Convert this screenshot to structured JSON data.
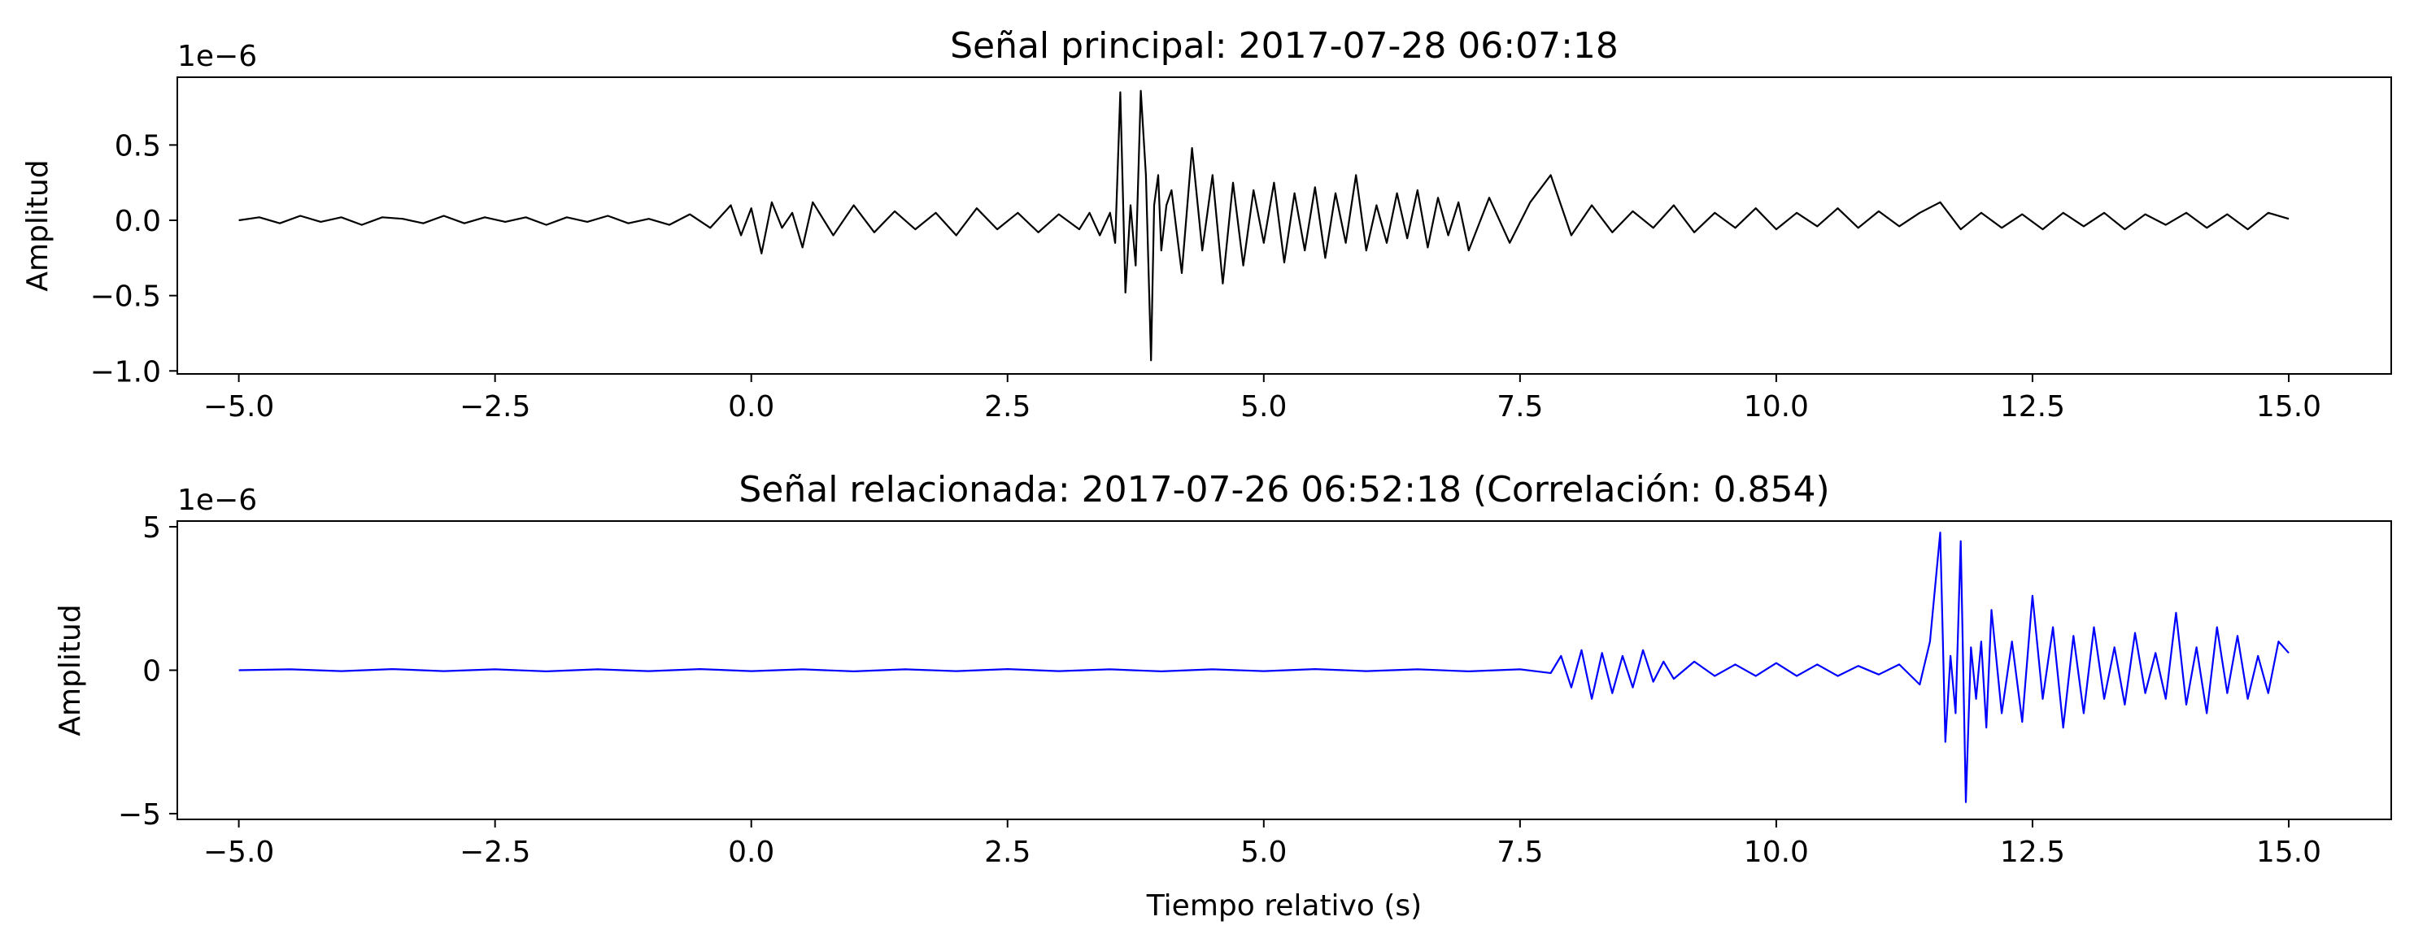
{
  "chart_data": [
    {
      "type": "line",
      "title": "Señal principal: 2017-07-28 06:07:18",
      "xlabel": "",
      "ylabel": "Amplitud",
      "offset_label": "1e−6",
      "xlim": [
        -5.6,
        16.0
      ],
      "ylim": [
        -1.02,
        0.95
      ],
      "grid": false,
      "xticks": [
        -5.0,
        -2.5,
        0.0,
        2.5,
        5.0,
        7.5,
        10.0,
        12.5,
        15.0
      ],
      "xtick_labels": [
        "−5.0",
        "−2.5",
        "0.0",
        "2.5",
        "5.0",
        "7.5",
        "10.0",
        "12.5",
        "15.0"
      ],
      "yticks": [
        0.5,
        0.0,
        -0.5,
        -1.0
      ],
      "ytick_labels": [
        "0.5",
        "0.0",
        "−0.5",
        "−1.0"
      ],
      "series": [
        {
          "color": "#000000",
          "x": [
            -5.0,
            -4.8,
            -4.6,
            -4.4,
            -4.2,
            -4.0,
            -3.8,
            -3.6,
            -3.4,
            -3.2,
            -3.0,
            -2.8,
            -2.6,
            -2.4,
            -2.2,
            -2.0,
            -1.8,
            -1.6,
            -1.4,
            -1.2,
            -1.0,
            -0.8,
            -0.6,
            -0.4,
            -0.2,
            -0.1,
            0.0,
            0.1,
            0.2,
            0.3,
            0.4,
            0.5,
            0.6,
            0.8,
            1.0,
            1.2,
            1.4,
            1.6,
            1.8,
            2.0,
            2.2,
            2.4,
            2.6,
            2.8,
            3.0,
            3.2,
            3.3,
            3.4,
            3.5,
            3.55,
            3.6,
            3.65,
            3.7,
            3.75,
            3.8,
            3.85,
            3.9,
            3.93,
            3.97,
            4.0,
            4.05,
            4.1,
            4.2,
            4.3,
            4.4,
            4.5,
            4.6,
            4.7,
            4.8,
            4.9,
            5.0,
            5.1,
            5.2,
            5.3,
            5.4,
            5.5,
            5.6,
            5.7,
            5.8,
            5.9,
            6.0,
            6.1,
            6.2,
            6.3,
            6.4,
            6.5,
            6.6,
            6.7,
            6.8,
            6.9,
            7.0,
            7.2,
            7.4,
            7.6,
            7.8,
            8.0,
            8.2,
            8.4,
            8.6,
            8.8,
            9.0,
            9.2,
            9.4,
            9.6,
            9.8,
            10.0,
            10.2,
            10.4,
            10.6,
            10.8,
            11.0,
            11.2,
            11.4,
            11.6,
            11.8,
            12.0,
            12.2,
            12.4,
            12.6,
            12.8,
            13.0,
            13.2,
            13.4,
            13.6,
            13.8,
            14.0,
            14.2,
            14.4,
            14.6,
            14.8,
            15.0
          ],
          "values": [
            0.0,
            0.02,
            -0.02,
            0.03,
            -0.01,
            0.02,
            -0.03,
            0.02,
            0.01,
            -0.02,
            0.03,
            -0.02,
            0.02,
            -0.01,
            0.02,
            -0.03,
            0.02,
            -0.01,
            0.03,
            -0.02,
            0.01,
            -0.03,
            0.04,
            -0.05,
            0.1,
            -0.1,
            0.08,
            -0.22,
            0.12,
            -0.05,
            0.05,
            -0.18,
            0.12,
            -0.1,
            0.1,
            -0.08,
            0.06,
            -0.06,
            0.05,
            -0.1,
            0.08,
            -0.06,
            0.05,
            -0.08,
            0.04,
            -0.06,
            0.05,
            -0.1,
            0.05,
            -0.15,
            0.85,
            -0.48,
            0.1,
            -0.3,
            0.86,
            0.3,
            -0.93,
            0.1,
            0.3,
            -0.2,
            0.1,
            0.2,
            -0.35,
            0.48,
            -0.2,
            0.3,
            -0.42,
            0.25,
            -0.3,
            0.2,
            -0.15,
            0.25,
            -0.28,
            0.18,
            -0.2,
            0.22,
            -0.25,
            0.18,
            -0.15,
            0.3,
            -0.2,
            0.1,
            -0.15,
            0.18,
            -0.12,
            0.2,
            -0.18,
            0.15,
            -0.1,
            0.12,
            -0.2,
            0.15,
            -0.15,
            0.12,
            0.3,
            -0.1,
            0.1,
            -0.08,
            0.06,
            -0.05,
            0.1,
            -0.08,
            0.05,
            -0.05,
            0.08,
            -0.06,
            0.05,
            -0.04,
            0.08,
            -0.05,
            0.06,
            -0.04,
            0.05,
            0.12,
            -0.06,
            0.05,
            -0.05,
            0.04,
            -0.06,
            0.05,
            -0.04,
            0.05,
            -0.06,
            0.04,
            -0.03,
            0.05,
            -0.05,
            0.04,
            -0.06,
            0.05,
            0.01
          ]
        }
      ]
    },
    {
      "type": "line",
      "title": "Señal relacionada: 2017-07-26 06:52:18 (Correlación: 0.854)",
      "xlabel": "Tiempo relativo (s)",
      "ylabel": "Amplitud",
      "offset_label": "1e−6",
      "xlim": [
        -5.6,
        16.0
      ],
      "ylim": [
        -5.2,
        5.2
      ],
      "grid": false,
      "xticks": [
        -5.0,
        -2.5,
        0.0,
        2.5,
        5.0,
        7.5,
        10.0,
        12.5,
        15.0
      ],
      "xtick_labels": [
        "−5.0",
        "−2.5",
        "0.0",
        "2.5",
        "5.0",
        "7.5",
        "10.0",
        "12.5",
        "15.0"
      ],
      "yticks": [
        5,
        0,
        -5
      ],
      "ytick_labels": [
        "5",
        "0",
        "−5"
      ],
      "series": [
        {
          "color": "#0000ff",
          "x": [
            -5.0,
            -4.5,
            -4.0,
            -3.5,
            -3.0,
            -2.5,
            -2.0,
            -1.5,
            -1.0,
            -0.5,
            0.0,
            0.5,
            1.0,
            1.5,
            2.0,
            2.5,
            3.0,
            3.5,
            4.0,
            4.5,
            5.0,
            5.5,
            6.0,
            6.5,
            7.0,
            7.5,
            7.8,
            7.9,
            8.0,
            8.1,
            8.2,
            8.3,
            8.4,
            8.5,
            8.6,
            8.7,
            8.8,
            8.9,
            9.0,
            9.2,
            9.4,
            9.6,
            9.8,
            10.0,
            10.2,
            10.4,
            10.6,
            10.8,
            11.0,
            11.2,
            11.4,
            11.5,
            11.6,
            11.65,
            11.7,
            11.75,
            11.8,
            11.85,
            11.9,
            11.95,
            12.0,
            12.05,
            12.1,
            12.2,
            12.3,
            12.4,
            12.5,
            12.6,
            12.7,
            12.8,
            12.9,
            13.0,
            13.1,
            13.2,
            13.3,
            13.4,
            13.5,
            13.6,
            13.7,
            13.8,
            13.9,
            14.0,
            14.1,
            14.2,
            14.3,
            14.4,
            14.5,
            14.6,
            14.7,
            14.8,
            14.9,
            15.0
          ],
          "values": [
            0.0,
            0.03,
            -0.03,
            0.04,
            -0.03,
            0.03,
            -0.04,
            0.03,
            -0.03,
            0.04,
            -0.03,
            0.03,
            -0.04,
            0.03,
            -0.03,
            0.04,
            -0.03,
            0.03,
            -0.04,
            0.03,
            -0.03,
            0.04,
            -0.03,
            0.03,
            -0.04,
            0.03,
            -0.1,
            0.5,
            -0.6,
            0.7,
            -1.0,
            0.6,
            -0.8,
            0.5,
            -0.6,
            0.7,
            -0.4,
            0.3,
            -0.3,
            0.3,
            -0.2,
            0.2,
            -0.2,
            0.25,
            -0.2,
            0.2,
            -0.2,
            0.15,
            -0.15,
            0.2,
            -0.5,
            1.0,
            4.8,
            -2.5,
            0.5,
            -1.5,
            4.5,
            -4.6,
            0.8,
            -1.0,
            1.0,
            -2.0,
            2.1,
            -1.5,
            1.0,
            -1.8,
            2.6,
            -1.0,
            1.5,
            -2.0,
            1.2,
            -1.5,
            1.5,
            -1.0,
            0.8,
            -1.2,
            1.3,
            -0.8,
            0.6,
            -1.0,
            2.0,
            -1.2,
            0.8,
            -1.5,
            1.5,
            -0.8,
            1.2,
            -1.0,
            0.5,
            -0.8,
            1.0,
            0.6
          ]
        }
      ]
    }
  ]
}
